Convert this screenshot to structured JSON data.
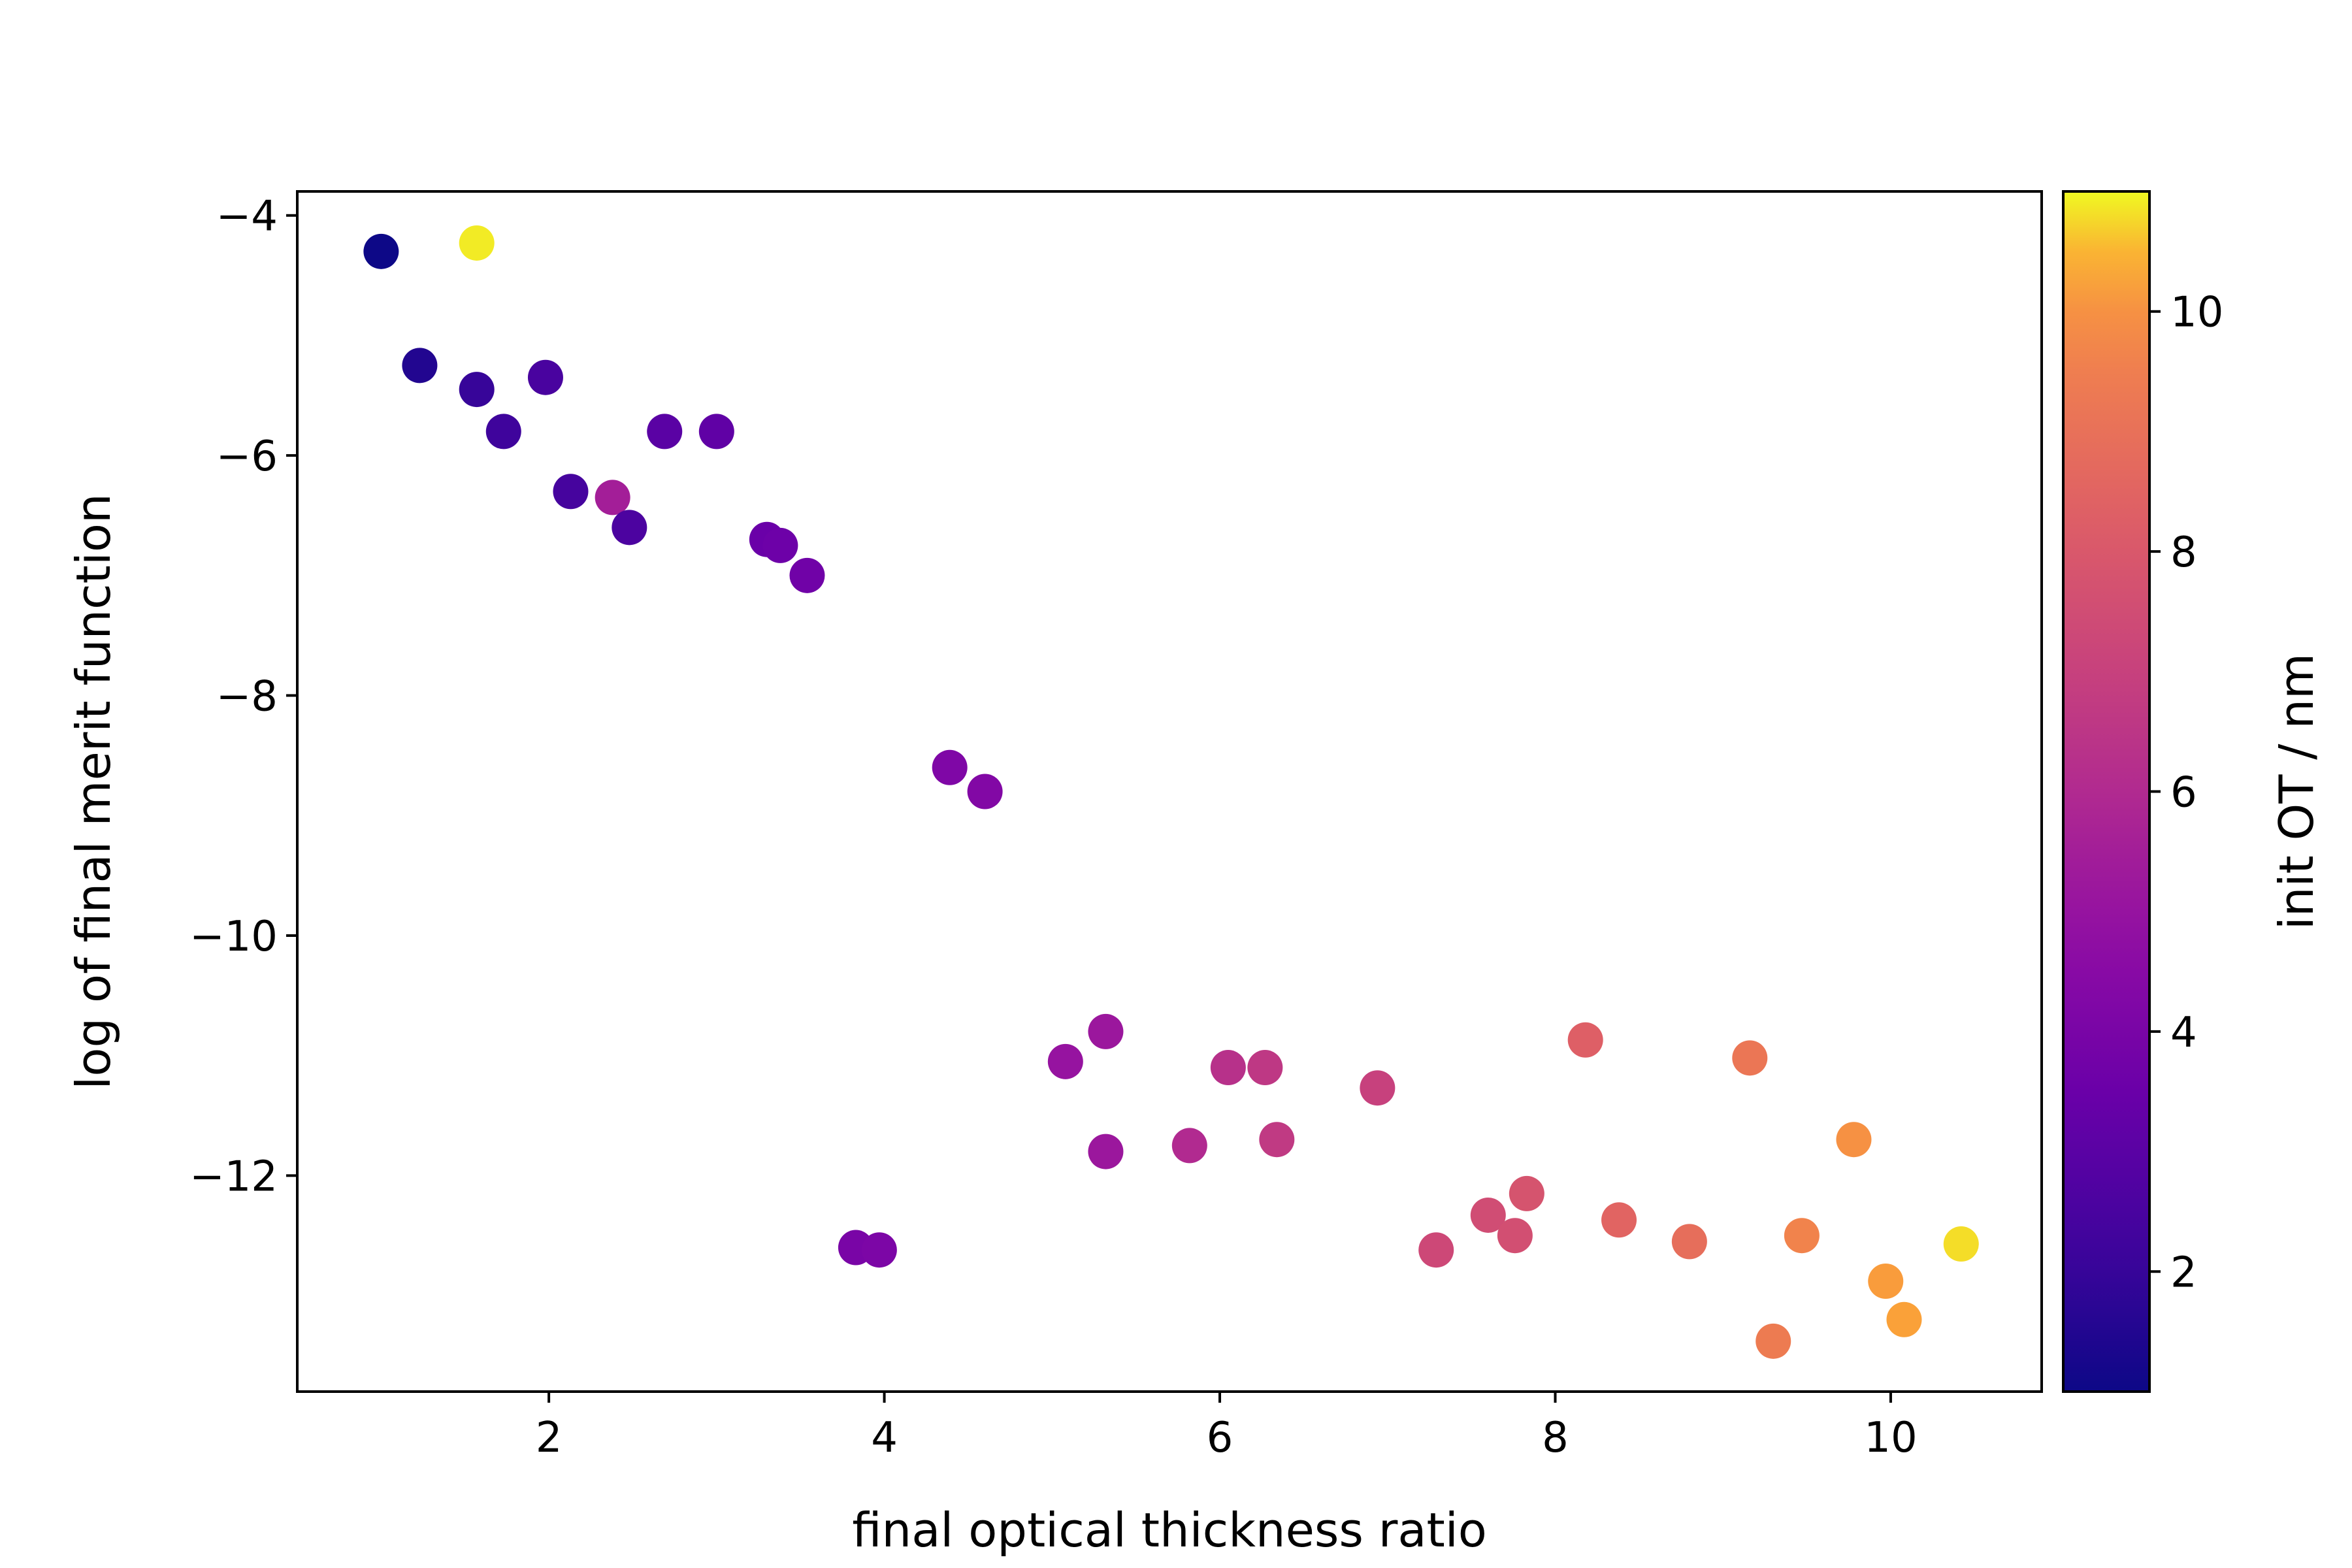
{
  "chart_data": {
    "type": "scatter",
    "title": "",
    "xlabel": "final optical thickness ratio",
    "ylabel": "log of final merit function",
    "xlim": [
      0.5,
      10.9
    ],
    "ylim": [
      -13.8,
      -3.8
    ],
    "xticks": [
      2,
      4,
      6,
      8,
      10
    ],
    "xtick_labels": [
      "2",
      "4",
      "6",
      "8",
      "10"
    ],
    "yticks": [
      -4,
      -6,
      -8,
      -10,
      -12
    ],
    "ytick_labels": [
      "−4",
      "−6",
      "−8",
      "−10",
      "−12"
    ],
    "grid": false,
    "colormap": "plasma",
    "colorbar": {
      "label": "init OT / nm",
      "range": [
        1,
        11
      ],
      "ticks": [
        2,
        4,
        6,
        8,
        10
      ],
      "tick_labels": [
        "2",
        "4",
        "6",
        "8",
        "10"
      ]
    },
    "points": [
      {
        "x": 1.0,
        "y": -4.3,
        "c": 1.0
      },
      {
        "x": 1.57,
        "y": -4.23,
        "c": 10.9
      },
      {
        "x": 1.23,
        "y": -5.25,
        "c": 1.5
      },
      {
        "x": 1.57,
        "y": -5.45,
        "c": 2.0
      },
      {
        "x": 1.73,
        "y": -5.8,
        "c": 2.2
      },
      {
        "x": 1.98,
        "y": -5.35,
        "c": 2.5
      },
      {
        "x": 2.13,
        "y": -6.3,
        "c": 2.4
      },
      {
        "x": 2.38,
        "y": -6.35,
        "c": 5.5
      },
      {
        "x": 2.48,
        "y": -6.6,
        "c": 2.6
      },
      {
        "x": 2.69,
        "y": -5.8,
        "c": 3.0
      },
      {
        "x": 3.0,
        "y": -5.8,
        "c": 3.2
      },
      {
        "x": 3.3,
        "y": -6.7,
        "c": 3.5
      },
      {
        "x": 3.38,
        "y": -6.75,
        "c": 3.6
      },
      {
        "x": 3.54,
        "y": -7.0,
        "c": 3.7
      },
      {
        "x": 3.83,
        "y": -12.6,
        "c": 4.0
      },
      {
        "x": 3.97,
        "y": -12.62,
        "c": 4.1
      },
      {
        "x": 4.39,
        "y": -8.6,
        "c": 4.2
      },
      {
        "x": 4.6,
        "y": -8.8,
        "c": 4.3
      },
      {
        "x": 5.08,
        "y": -11.05,
        "c": 5.0
      },
      {
        "x": 5.32,
        "y": -10.8,
        "c": 5.2
      },
      {
        "x": 5.32,
        "y": -11.8,
        "c": 5.2
      },
      {
        "x": 5.82,
        "y": -11.75,
        "c": 6.0
      },
      {
        "x": 6.05,
        "y": -11.1,
        "c": 6.3
      },
      {
        "x": 6.27,
        "y": -11.1,
        "c": 6.6
      },
      {
        "x": 6.34,
        "y": -11.7,
        "c": 6.7
      },
      {
        "x": 6.94,
        "y": -11.27,
        "c": 7.0
      },
      {
        "x": 7.29,
        "y": -12.62,
        "c": 7.3
      },
      {
        "x": 7.6,
        "y": -12.33,
        "c": 7.5
      },
      {
        "x": 7.76,
        "y": -12.5,
        "c": 7.6
      },
      {
        "x": 7.83,
        "y": -12.15,
        "c": 7.8
      },
      {
        "x": 8.18,
        "y": -10.87,
        "c": 8.3
      },
      {
        "x": 8.38,
        "y": -12.37,
        "c": 8.5
      },
      {
        "x": 8.8,
        "y": -12.55,
        "c": 8.9
      },
      {
        "x": 9.16,
        "y": -11.02,
        "c": 9.2
      },
      {
        "x": 9.3,
        "y": -13.38,
        "c": 9.4
      },
      {
        "x": 9.47,
        "y": -12.5,
        "c": 9.7
      },
      {
        "x": 9.78,
        "y": -11.7,
        "c": 10.0
      },
      {
        "x": 9.97,
        "y": -12.88,
        "c": 10.2
      },
      {
        "x": 10.08,
        "y": -13.2,
        "c": 10.3
      },
      {
        "x": 10.42,
        "y": -12.57,
        "c": 10.8
      }
    ]
  }
}
